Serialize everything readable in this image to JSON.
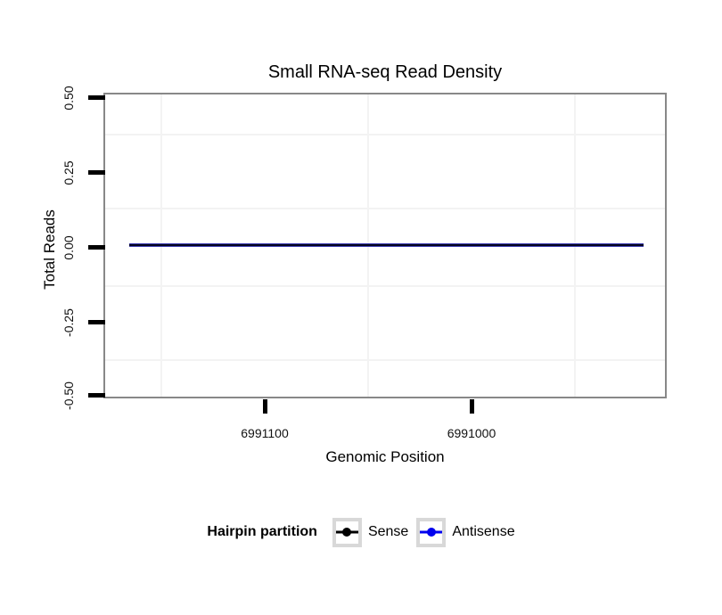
{
  "chart": {
    "title": "Small RNA-seq Read Density",
    "y_axis": {
      "label": "Total Reads",
      "ticks": [
        "0.50",
        "0.25",
        "0.00",
        "-0.25",
        "-0.50"
      ]
    },
    "x_axis": {
      "label": "Genomic Position",
      "ticks": [
        "6991100",
        "6991000"
      ]
    },
    "legend": {
      "title": "Hairpin partition",
      "entries": [
        {
          "label": "Sense",
          "color": "#000000"
        },
        {
          "label": "Antisense",
          "color": "#0000ee"
        }
      ]
    }
  },
  "chart_data": {
    "type": "line",
    "title": "Small RNA-seq Read Density",
    "xlabel": "Genomic Position",
    "ylabel": "Total Reads",
    "x_axis_reversed": true,
    "x_ticks": [
      6991100,
      6991000
    ],
    "x_range": [
      6991165,
      6990917
    ],
    "y_ticks": [
      0.5,
      0.25,
      0.0,
      -0.25,
      -0.5
    ],
    "ylim": [
      -0.5,
      0.5
    ],
    "grid": "minor gridlines only, very light gray",
    "legend_position": "bottom",
    "legend_title": "Hairpin partition",
    "series": [
      {
        "name": "Sense",
        "color": "#000000",
        "style": "line-with-point",
        "x_start": 6991165,
        "x_end": 6990917,
        "y_constant": 0
      },
      {
        "name": "Antisense",
        "color": "#0000ee",
        "style": "line-with-point",
        "x_start": 6991165,
        "x_end": 6990917,
        "y_constant": 0
      }
    ],
    "note": "Both series are flat at y=0 and overlap, rendering as one dark navy horizontal line"
  }
}
